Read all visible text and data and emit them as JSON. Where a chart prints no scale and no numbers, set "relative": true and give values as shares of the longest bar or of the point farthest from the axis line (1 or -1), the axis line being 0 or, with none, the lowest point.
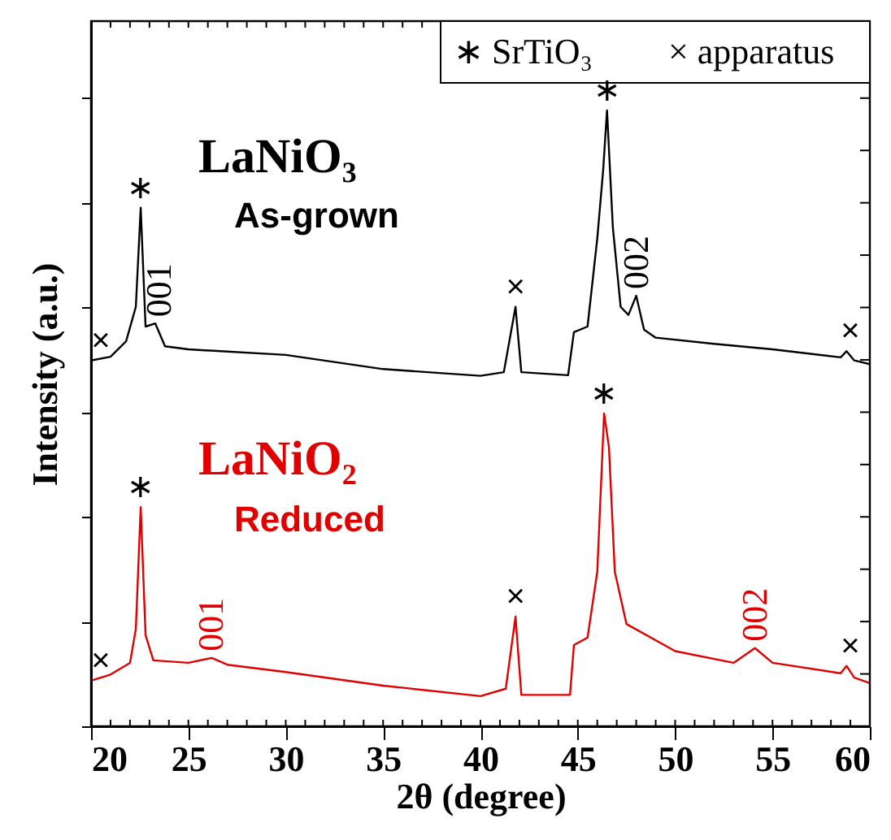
{
  "chart_data": {
    "type": "line",
    "relative": true,
    "xlabel": "2θ (degree)",
    "ylabel": "Intensity (a.u.)",
    "xlim": [
      20,
      60
    ],
    "xticks": [
      20,
      25,
      30,
      35,
      40,
      45,
      50,
      55,
      60
    ],
    "grid": false,
    "marker": "none",
    "line_style": "solid",
    "tick_labels": "x",
    "series": [
      {
        "name": "LaNiO₃",
        "color": "#000000",
        "x": [
          20,
          21,
          21.8,
          22.3,
          22.55,
          22.8,
          23.3,
          23.8,
          25,
          30,
          35,
          40,
          41.2,
          41.8,
          42.1,
          44.5,
          44.8,
          45.5,
          46.0,
          46.3,
          46.5,
          46.8,
          47.2,
          47.6,
          48.0,
          48.4,
          49,
          52,
          55,
          58.5,
          58.8,
          59.2,
          60
        ],
        "values": [
          0.594,
          0.6,
          0.625,
          0.681,
          0.842,
          0.649,
          0.654,
          0.617,
          0.612,
          0.603,
          0.58,
          0.569,
          0.575,
          0.681,
          0.575,
          0.57,
          0.64,
          0.649,
          0.792,
          0.902,
          1.0,
          0.81,
          0.681,
          0.668,
          0.699,
          0.644,
          0.631,
          0.621,
          0.612,
          0.599,
          0.609,
          0.594,
          0.588
        ]
      },
      {
        "name": "LaNiO₂",
        "color": "#e00000",
        "x": [
          20,
          21,
          22,
          22.3,
          22.55,
          22.8,
          23.2,
          25,
          26.2,
          27,
          30,
          35,
          40,
          41.3,
          41.8,
          42.1,
          44.6,
          44.8,
          45.5,
          46.0,
          46.35,
          46.6,
          46.9,
          47.5,
          50,
          53,
          54.1,
          55,
          58.5,
          58.8,
          59.2,
          60
        ],
        "values": [
          0.074,
          0.084,
          0.103,
          0.158,
          0.356,
          0.148,
          0.107,
          0.103,
          0.111,
          0.1,
          0.088,
          0.066,
          0.049,
          0.061,
          0.178,
          0.051,
          0.051,
          0.132,
          0.144,
          0.251,
          0.508,
          0.453,
          0.251,
          0.166,
          0.122,
          0.103,
          0.127,
          0.103,
          0.086,
          0.098,
          0.079,
          0.07
        ]
      }
    ],
    "annotations": [
      "∗ SrTiO₃",
      "× apparatus",
      "As-grown",
      "Reduced",
      {
        "text": "∗",
        "x": 22.55,
        "y": 0.842
      },
      {
        "text": "001",
        "x": 23.5,
        "y": 0.654
      },
      {
        "text": "×",
        "x": 20.5,
        "y": 0.594
      },
      {
        "text": "×",
        "x": 41.8,
        "y": 0.681
      },
      {
        "text": "∗",
        "x": 46.5,
        "y": 1.0
      },
      {
        "text": "002",
        "x": 48.0,
        "y": 0.699
      },
      {
        "text": "×",
        "x": 59.0,
        "y": 0.609
      },
      {
        "text": "∗",
        "x": 22.55,
        "y": 0.356
      },
      {
        "text": "001",
        "x": 26.2,
        "y": 0.111
      },
      {
        "text": "×",
        "x": 20.5,
        "y": 0.074
      },
      {
        "text": "×",
        "x": 41.8,
        "y": 0.178
      },
      {
        "text": "∗",
        "x": 46.35,
        "y": 0.508
      },
      {
        "text": "002",
        "x": 54.1,
        "y": 0.127
      },
      {
        "text": "×",
        "x": 59.0,
        "y": 0.098
      }
    ]
  }
}
